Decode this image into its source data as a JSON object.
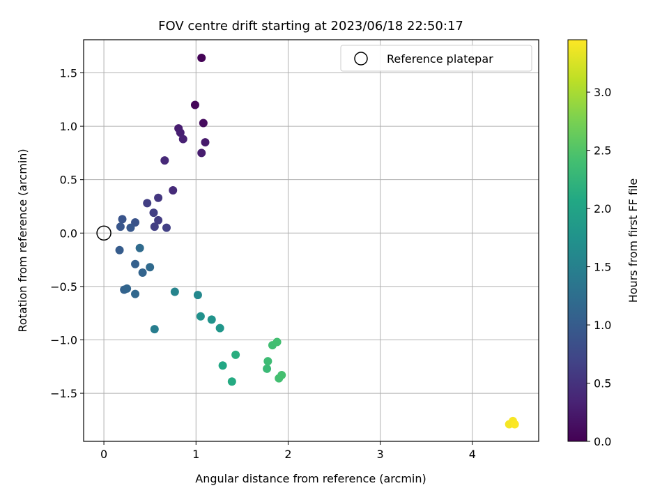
{
  "chart_data": {
    "type": "scatter",
    "title": "FOV centre drift starting at 2023/06/18 22:50:17",
    "xlabel": "Angular distance from reference (arcmin)",
    "ylabel": "Rotation from reference (arcmin)",
    "xlim": [
      -0.22,
      4.72
    ],
    "ylim": [
      -1.95,
      1.81
    ],
    "xticks": [
      0,
      1,
      2,
      3,
      4
    ],
    "xtick_labels": [
      "0",
      "1",
      "2",
      "3",
      "4"
    ],
    "yticks": [
      -1.5,
      -1.0,
      -0.5,
      0.0,
      0.5,
      1.0,
      1.5
    ],
    "ytick_labels": [
      "−1.5",
      "−1.0",
      "−0.5",
      "0.0",
      "0.5",
      "1.0",
      "1.5"
    ],
    "grid": true,
    "legend": {
      "position": "upper right",
      "entries": [
        "Reference platepar"
      ]
    },
    "reference_point": {
      "x": 0,
      "y": 0,
      "label": "Reference platepar"
    },
    "colormap": "viridis",
    "colorbar": {
      "label": "Hours from first FF file",
      "range": [
        0.0,
        3.45
      ],
      "ticks": [
        0.0,
        0.5,
        1.0,
        1.5,
        2.0,
        2.5,
        3.0
      ],
      "tick_labels": [
        "0.0",
        "0.5",
        "1.0",
        "1.5",
        "2.0",
        "2.5",
        "3.0"
      ]
    },
    "points": [
      {
        "x": 1.06,
        "y": 1.64,
        "c": 0.02
      },
      {
        "x": 0.99,
        "y": 1.2,
        "c": 0.05
      },
      {
        "x": 1.08,
        "y": 1.03,
        "c": 0.1
      },
      {
        "x": 0.81,
        "y": 0.98,
        "c": 0.28
      },
      {
        "x": 0.83,
        "y": 0.94,
        "c": 0.3
      },
      {
        "x": 0.86,
        "y": 0.88,
        "c": 0.32
      },
      {
        "x": 1.1,
        "y": 0.85,
        "c": 0.25
      },
      {
        "x": 1.06,
        "y": 0.75,
        "c": 0.28
      },
      {
        "x": 0.66,
        "y": 0.68,
        "c": 0.4
      },
      {
        "x": 0.75,
        "y": 0.4,
        "c": 0.42
      },
      {
        "x": 0.59,
        "y": 0.33,
        "c": 0.55
      },
      {
        "x": 0.47,
        "y": 0.28,
        "c": 0.62
      },
      {
        "x": 0.54,
        "y": 0.19,
        "c": 0.62
      },
      {
        "x": 0.59,
        "y": 0.12,
        "c": 0.6
      },
      {
        "x": 0.55,
        "y": 0.06,
        "c": 0.62
      },
      {
        "x": 0.68,
        "y": 0.05,
        "c": 0.65
      },
      {
        "x": 0.2,
        "y": 0.13,
        "c": 0.9
      },
      {
        "x": 0.18,
        "y": 0.06,
        "c": 0.92
      },
      {
        "x": 0.34,
        "y": 0.1,
        "c": 0.88
      },
      {
        "x": 0.29,
        "y": 0.05,
        "c": 0.95
      },
      {
        "x": 0.17,
        "y": -0.16,
        "c": 1.0
      },
      {
        "x": 0.39,
        "y": -0.14,
        "c": 1.2
      },
      {
        "x": 0.34,
        "y": -0.29,
        "c": 1.05
      },
      {
        "x": 0.5,
        "y": -0.32,
        "c": 1.18
      },
      {
        "x": 0.42,
        "y": -0.37,
        "c": 1.1
      },
      {
        "x": 0.22,
        "y": -0.53,
        "c": 1.08
      },
      {
        "x": 0.25,
        "y": -0.52,
        "c": 1.12
      },
      {
        "x": 0.34,
        "y": -0.57,
        "c": 1.15
      },
      {
        "x": 0.55,
        "y": -0.9,
        "c": 1.45
      },
      {
        "x": 0.77,
        "y": -0.55,
        "c": 1.55
      },
      {
        "x": 1.02,
        "y": -0.58,
        "c": 1.6
      },
      {
        "x": 1.05,
        "y": -0.78,
        "c": 1.72
      },
      {
        "x": 1.17,
        "y": -0.81,
        "c": 1.75
      },
      {
        "x": 1.26,
        "y": -0.89,
        "c": 1.8
      },
      {
        "x": 1.29,
        "y": -1.24,
        "c": 2.05
      },
      {
        "x": 1.39,
        "y": -1.39,
        "c": 2.1
      },
      {
        "x": 1.43,
        "y": -1.14,
        "c": 2.15
      },
      {
        "x": 1.77,
        "y": -1.27,
        "c": 2.32
      },
      {
        "x": 1.78,
        "y": -1.2,
        "c": 2.35
      },
      {
        "x": 1.83,
        "y": -1.05,
        "c": 2.38
      },
      {
        "x": 1.88,
        "y": -1.02,
        "c": 2.4
      },
      {
        "x": 1.9,
        "y": -1.36,
        "c": 2.4
      },
      {
        "x": 1.93,
        "y": -1.33,
        "c": 2.42
      },
      {
        "x": 4.4,
        "y": -1.79,
        "c": 3.4
      },
      {
        "x": 4.44,
        "y": -1.76,
        "c": 3.42
      },
      {
        "x": 4.46,
        "y": -1.79,
        "c": 3.44
      }
    ]
  }
}
